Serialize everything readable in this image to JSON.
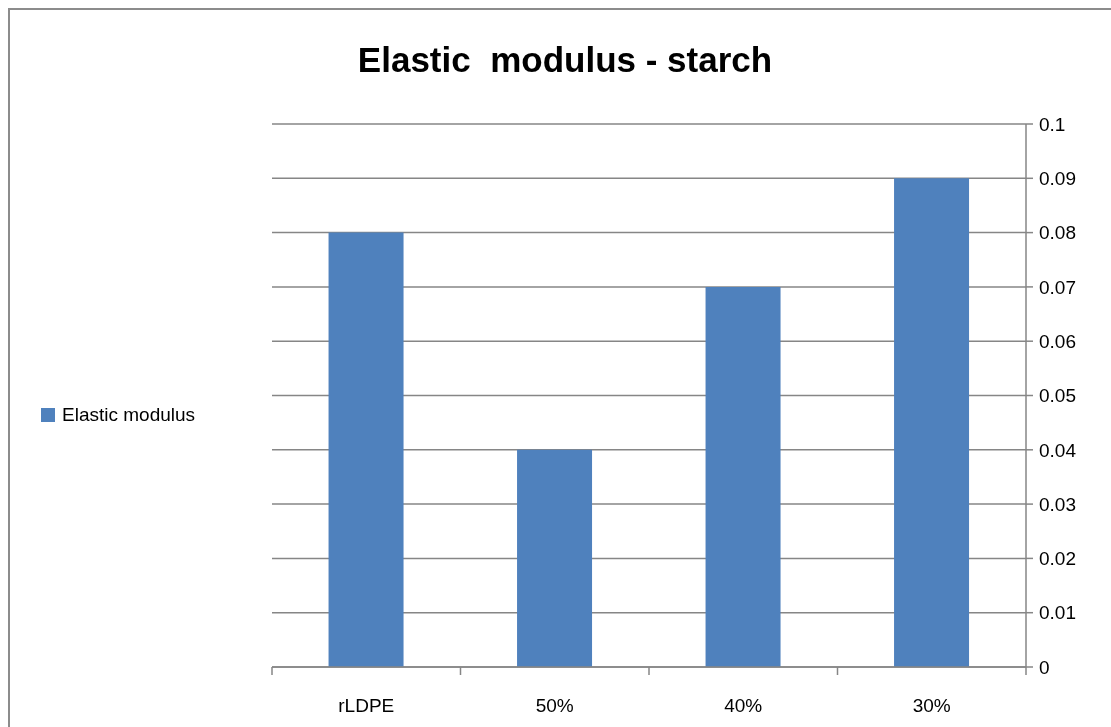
{
  "chart_data": {
    "type": "bar",
    "title": "Elastic  modulus - starch",
    "categories": [
      "rLDPE",
      "50%",
      "40%",
      "30%"
    ],
    "series": [
      {
        "name": "Elastic modulus",
        "color": "#4f81bd",
        "values": [
          0.08,
          0.04,
          0.07,
          0.09
        ]
      }
    ],
    "ylim": [
      0,
      0.1
    ],
    "yticks": [
      0,
      0.01,
      0.02,
      0.03,
      0.04,
      0.05,
      0.06,
      0.07,
      0.08,
      0.09,
      0.1
    ],
    "grid": "y",
    "legend": "left"
  }
}
